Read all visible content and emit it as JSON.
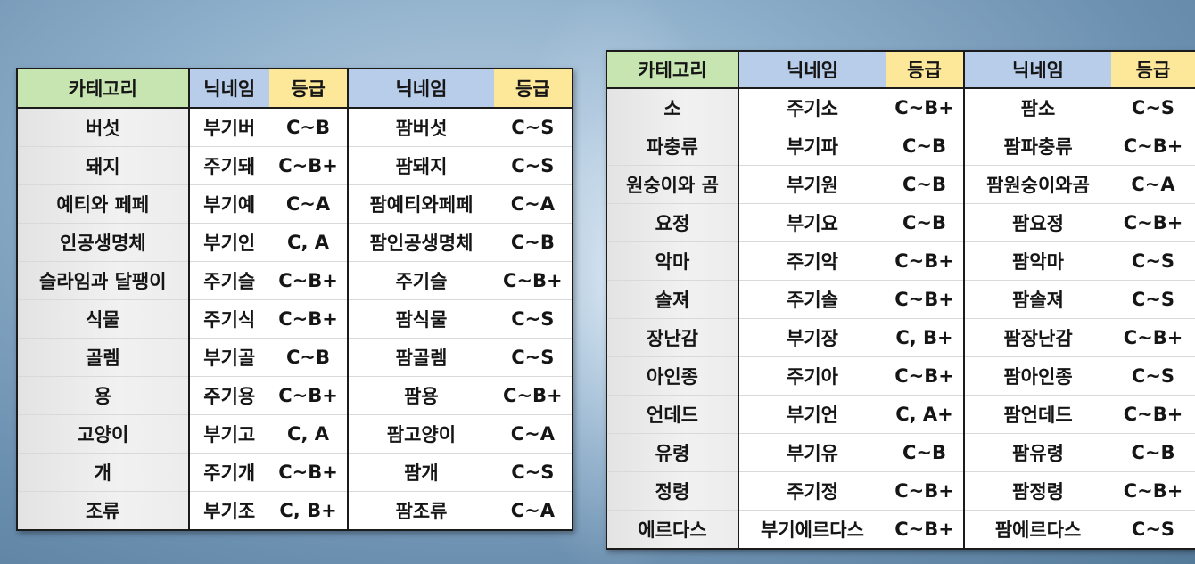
{
  "left_table": {
    "headers": [
      "카테고리",
      "닉네임",
      "등급",
      "닉네임",
      "등급"
    ],
    "rows": [
      [
        "버섯",
        "부기버",
        "C~B",
        "팜버섯",
        "C~S"
      ],
      [
        "돼지",
        "주기돼",
        "C~B+",
        "팜돼지",
        "C~S"
      ],
      [
        "예티와 페페",
        "부기예",
        "C~A",
        "팜예티와페페",
        "C~A"
      ],
      [
        "인공생명체",
        "부기인",
        "C, A",
        "팜인공생명체",
        "C~B"
      ],
      [
        "슬라임과 달팽이",
        "주기슬",
        "C~B+",
        "주기슬",
        "C~B+"
      ],
      [
        "식물",
        "주기식",
        "C~B+",
        "팜식물",
        "C~S"
      ],
      [
        "골렘",
        "부기골",
        "C~B",
        "팜골렘",
        "C~S"
      ],
      [
        "용",
        "주기용",
        "C~B+",
        "팜용",
        "C~B+"
      ],
      [
        "고양이",
        "부기고",
        "C, A",
        "팜고양이",
        "C~A"
      ],
      [
        "개",
        "주기개",
        "C~B+",
        "팜개",
        "C~S"
      ],
      [
        "조류",
        "부기조",
        "C, B+",
        "팜조류",
        "C~A"
      ]
    ]
  },
  "right_table": {
    "headers": [
      "카테고리",
      "닉네임",
      "등급",
      "닉네임",
      "등급"
    ],
    "rows": [
      [
        "소",
        "주기소",
        "C~B+",
        "팜소",
        "C~S"
      ],
      [
        "파충류",
        "부기파",
        "C~B",
        "팜파충류",
        "C~B+"
      ],
      [
        "원숭이와 곰",
        "부기원",
        "C~B",
        "팜원숭이와곰",
        "C~A"
      ],
      [
        "요정",
        "부기요",
        "C~B",
        "팜요정",
        "C~B+"
      ],
      [
        "악마",
        "주기악",
        "C~B+",
        "팜악마",
        "C~S"
      ],
      [
        "솔져",
        "주기솔",
        "C~B+",
        "팜솔져",
        "C~S"
      ],
      [
        "장난감",
        "부기장",
        "C, B+",
        "팜장난감",
        "C~B+"
      ],
      [
        "아인종",
        "주기아",
        "C~B+",
        "팜아인종",
        "C~S"
      ],
      [
        "언데드",
        "부기언",
        "C, A+",
        "팜언데드",
        "C~B+"
      ],
      [
        "유령",
        "부기유",
        "C~B",
        "팜유령",
        "C~B"
      ],
      [
        "정령",
        "주기정",
        "C~B+",
        "팜정령",
        "C~B+"
      ],
      [
        "에르다스",
        "부기에르다스",
        "C~B+",
        "팜에르다스",
        "C~S"
      ]
    ]
  },
  "colors": {
    "category_header": "#c6e5b1",
    "nickname_header": "#b8cdea",
    "grade_header": "#fde89a",
    "border": "#1b1b1b"
  }
}
